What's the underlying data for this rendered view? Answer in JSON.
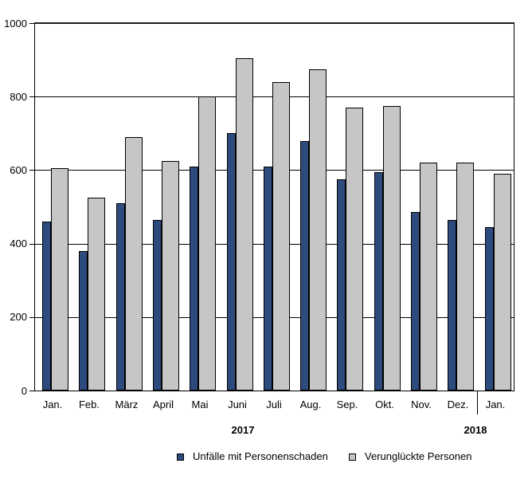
{
  "chart_data": {
    "type": "bar",
    "title": "",
    "xlabel": "",
    "ylabel": "",
    "categories": [
      "Jan.",
      "Feb.",
      "März",
      "April",
      "Mai",
      "Juni",
      "Juli",
      "Aug.",
      "Sep.",
      "Okt.",
      "Nov.",
      "Dez.",
      "Jan."
    ],
    "series": [
      {
        "name": "Unfälle mit Personenschaden",
        "color": "#2E4B7E",
        "values": [
          460,
          380,
          510,
          465,
          610,
          700,
          610,
          680,
          575,
          595,
          485,
          465,
          445
        ]
      },
      {
        "name": "Verunglückte Personen",
        "color": "#C6C6C6",
        "values": [
          605,
          525,
          690,
          625,
          800,
          905,
          840,
          875,
          770,
          775,
          620,
          620,
          590
        ]
      }
    ],
    "ylim": [
      0,
      1000
    ],
    "yticks": [
      0,
      200,
      400,
      600,
      800,
      1000
    ],
    "grid": "horizontal",
    "legend_position": "bottom",
    "year_groups": [
      {
        "label": "2017",
        "from": 0,
        "to": 11
      },
      {
        "label": "2018",
        "from": 12,
        "to": 12
      }
    ]
  }
}
